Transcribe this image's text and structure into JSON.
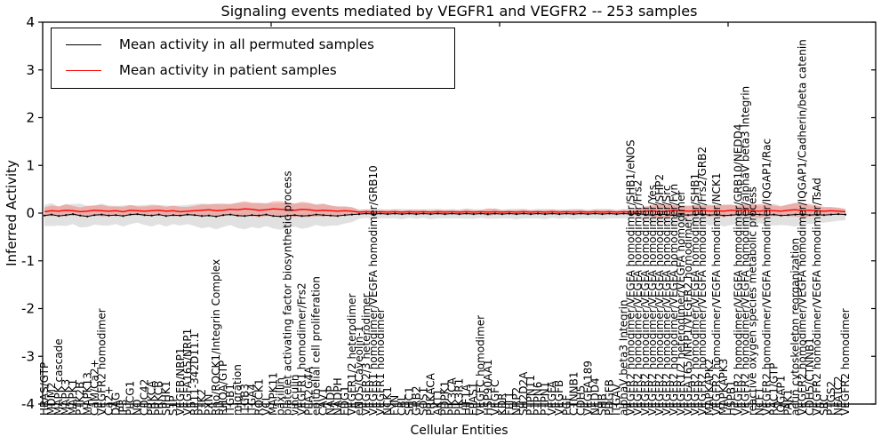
{
  "title": "Signaling events mediated by VEGFR1 and VEGFR2 -- 253 samples",
  "legend": {
    "items": [
      {
        "label": "Mean activity in all permuted samples",
        "color": "#000000"
      },
      {
        "label": "Mean activity in patient samples",
        "color": "#ff0000"
      }
    ]
  },
  "axes": {
    "ylabel": "Inferred Activity",
    "xlabel": "Cellular Entities",
    "ytick_labels": [
      "4",
      "3",
      "2",
      "1",
      "0",
      "-1",
      "-2",
      "-3",
      "-4"
    ],
    "ytick_values": [
      4,
      3,
      2,
      1,
      0,
      -1,
      -2,
      -3,
      -4
    ]
  },
  "colors": {
    "permuted_line": "#000000",
    "patient_line": "#ff0000",
    "permuted_band": "#c9c9c9",
    "patient_band": "#f4635a",
    "frame": "#000000"
  },
  "chart_data": {
    "type": "line",
    "title": "Signaling events mediated by VEGFR1 and VEGFR2 -- 253 samples",
    "xlabel": "Cellular Entities",
    "ylabel": "Inferred Activity",
    "ylim": [
      -4,
      4
    ],
    "grid": false,
    "legend_position": "upper left",
    "categories": [
      "HRAS/GTP",
      "MDM2",
      "MAPK cascade",
      "MAPK3",
      "MAPK1",
      "PTK2B",
      "MAPK13",
      "CaM/Ca2+",
      "VEGFR2 homodimer",
      "Ca2+",
      "DAG",
      "IP3",
      "PLCG1",
      "NO",
      "CDC42",
      "PRKCA",
      "PRKCB",
      "SPHK1",
      "S1P",
      "VEGFB/NRP1",
      "VEGFA165/NRP1",
      "RP11-342D11.1",
      "PTK2",
      "PXN",
      "Rho/ROCK1/Integrin Complex",
      "RHOA/GTP",
      "ITGB1",
      "migration",
      "ITGB3",
      "ITGA4",
      "ROCK1",
      "VCL",
      "MAPK11",
      "paxillin",
      "platelet activating factor biosynthetic process",
      "vinculin",
      "VEGFR1 homodimer/Frs2",
      "PLA2G4A",
      "epithelial cell proliferation",
      "CAV1",
      "NADP",
      "NADPH",
      "EDG1",
      "VEGFR1/2 heterodimer",
      "eNOS/Caveolin-1",
      "VEGFR2/3 heterodimer",
      "VEGFR1 homodimer/VEGFA homodimer/GRB10",
      "VEGFR1 homodimer",
      "NCK1",
      "FYN",
      "CBL",
      "SHC1",
      "GRB2",
      "SOS1",
      "PRKACA",
      "AKT1",
      "PDPK1",
      "PIK3CA",
      "PIK3R1",
      "HIF1A",
      "EPAS1",
      "VEGFC homodimer",
      "HSP90AA1",
      "VEGFC",
      "KDR",
      "FLT1",
      "NRP2",
      "SH2D2A",
      "PTPN11",
      "PTPN6",
      "PTPN1",
      "VEGFA",
      "VEGFB",
      "PGF",
      "CTNNB1",
      "CDH5",
      "VEGFA189",
      "NEDD4",
      "SHB",
      "PDGFB",
      "ITGAV",
      "alphaV beta3 Integrin",
      "VEGFR2 homodimer/VEGFA homodimer/SHB1/eNOS",
      "VEGFR2 homodimer/VEGFA homodimer/Frs2",
      "VEGFR2 homodimer/VEGFA homodimer",
      "VEGFR2 homodimer/VEGFA homodimer/Yes",
      "VEGFR2 homodimer/VEGFA homodimer/SHP2",
      "VEGFR2 homodimer/VEGFA homodimer/Src",
      "VEGFR2 homodimer/VEGFA homodimer/Fyn",
      "VEGFR1/2 heterodimer/VEGFA homodimer",
      "VEGFA165/NRP1/VEGFR2 homodimer",
      "VEGFR2 homodimer/VEGFA homodimer/SHB1",
      "VEGFR2 homodimer/VEGFA homodimer/Frs2/GRB2",
      "MAPKAPK2",
      "VEGFR2 homodimer/VEGFA homodimer/NCK1",
      "MAPKAPK3",
      "HSPB1",
      "VEGFR2 homodimer/VEGFA homodimer/GRB10/NEDD4",
      "VEGFR2 homodimer/VEGFA homodimer/alphaV beta3 Integrin",
      "reactive oxygen species metabolic process",
      "NCF1",
      "VEGFR2 homodimer/VEGFA homodimer/IQGAP1/Rac",
      "RAC1/GTP",
      "IQGAP1",
      "PAK1",
      "actin cytoskeleton reorganization",
      "VEGFR2 homodimer/VEGFA homodimer/IQGAP1/Cadherin/beta catenin",
      "CDH5/CTNNB1",
      "VEGFR2 homodimer/VEGFA homodimer/TsAd",
      "SRC",
      "PTGS2",
      "NFATC2",
      "VEGFR2 homodimer"
    ],
    "series": [
      {
        "name": "Mean activity in all permuted samples",
        "color": "#000000",
        "values": [
          -0.05,
          -0.03,
          -0.06,
          -0.04,
          -0.02,
          -0.05,
          -0.07,
          -0.04,
          -0.03,
          -0.05,
          -0.04,
          -0.06,
          -0.03,
          -0.02,
          -0.04,
          -0.05,
          -0.03,
          -0.06,
          -0.04,
          -0.05,
          -0.03,
          -0.04,
          -0.06,
          -0.05,
          -0.07,
          -0.04,
          -0.03,
          -0.05,
          -0.06,
          -0.04,
          -0.05,
          -0.03,
          -0.06,
          -0.07,
          -0.05,
          -0.04,
          -0.06,
          -0.05,
          -0.03,
          -0.04,
          -0.05,
          -0.06,
          -0.04,
          -0.03,
          -0.02,
          -0.01,
          -0.02,
          -0.01,
          -0.02,
          -0.01,
          -0.02,
          -0.01,
          -0.02,
          -0.01,
          -0.02,
          -0.01,
          -0.02,
          -0.01,
          -0.02,
          -0.01,
          -0.02,
          -0.01,
          -0.02,
          -0.01,
          -0.02,
          -0.01,
          -0.02,
          -0.01,
          -0.02,
          -0.01,
          -0.02,
          -0.01,
          -0.02,
          -0.01,
          -0.02,
          -0.01,
          -0.02,
          -0.01,
          -0.02,
          -0.01,
          -0.02,
          -0.01,
          -0.02,
          -0.01,
          -0.03,
          -0.04,
          -0.02,
          -0.03,
          -0.05,
          -0.03,
          -0.04,
          -0.03,
          -0.02,
          -0.04,
          -0.03,
          -0.05,
          -0.04,
          -0.03,
          -0.04,
          -0.02,
          -0.03,
          -0.04,
          -0.03,
          -0.05,
          -0.04,
          -0.03,
          -0.02,
          -0.04,
          -0.03,
          -0.04,
          -0.03,
          -0.02,
          -0.03
        ]
      },
      {
        "name": "Mean activity in patient samples",
        "color": "#ff0000",
        "values": [
          0.03,
          0.05,
          0.04,
          0.06,
          0.05,
          0.03,
          0.04,
          0.06,
          0.05,
          0.04,
          0.05,
          0.03,
          0.06,
          0.05,
          0.04,
          0.05,
          0.06,
          0.04,
          0.05,
          0.03,
          0.04,
          0.05,
          0.06,
          0.07,
          0.05,
          0.06,
          0.08,
          0.07,
          0.09,
          0.08,
          0.06,
          0.07,
          0.09,
          0.08,
          0.07,
          0.06,
          0.08,
          0.07,
          0.05,
          0.06,
          0.05,
          0.04,
          0.05,
          0.04,
          0.02,
          0.03,
          0.02,
          0.03,
          0.02,
          0.03,
          0.02,
          0.03,
          0.02,
          0.03,
          0.02,
          0.03,
          0.02,
          0.03,
          0.02,
          0.03,
          0.02,
          0.03,
          0.02,
          0.03,
          0.02,
          0.03,
          0.02,
          0.03,
          0.02,
          0.03,
          0.02,
          0.03,
          0.02,
          0.03,
          0.02,
          0.03,
          0.02,
          0.03,
          0.02,
          0.03,
          0.02,
          0.03,
          0.02,
          0.03,
          0.04,
          0.05,
          0.03,
          0.04,
          0.06,
          0.05,
          0.04,
          0.05,
          0.06,
          0.04,
          0.05,
          0.04,
          0.06,
          0.05,
          0.07,
          0.05,
          0.04,
          0.06,
          0.05,
          0.04,
          0.06,
          0.07,
          0.05,
          0.06,
          0.05,
          0.04,
          0.05,
          0.04,
          0.03
        ]
      }
    ],
    "bands": [
      {
        "name": "permuted std band",
        "color": "#c9c9c9",
        "half_width": [
          0.22,
          0.24,
          0.2,
          0.23,
          0.21,
          0.25,
          0.22,
          0.2,
          0.23,
          0.21,
          0.19,
          0.22,
          0.2,
          0.18,
          0.21,
          0.23,
          0.2,
          0.22,
          0.19,
          0.21,
          0.2,
          0.23,
          0.26,
          0.24,
          0.27,
          0.25,
          0.22,
          0.26,
          0.28,
          0.25,
          0.27,
          0.24,
          0.26,
          0.28,
          0.26,
          0.24,
          0.27,
          0.25,
          0.22,
          0.24,
          0.21,
          0.2,
          0.18,
          0.16,
          0.1,
          0.09,
          0.11,
          0.1,
          0.09,
          0.1,
          0.11,
          0.09,
          0.1,
          0.09,
          0.11,
          0.1,
          0.09,
          0.1,
          0.09,
          0.11,
          0.1,
          0.09,
          0.1,
          0.11,
          0.09,
          0.1,
          0.11,
          0.1,
          0.09,
          0.1,
          0.11,
          0.09,
          0.1,
          0.09,
          0.11,
          0.1,
          0.09,
          0.1,
          0.11,
          0.1,
          0.09,
          0.1,
          0.09,
          0.1,
          0.16,
          0.18,
          0.2,
          0.19,
          0.22,
          0.2,
          0.18,
          0.21,
          0.19,
          0.22,
          0.2,
          0.23,
          0.21,
          0.19,
          0.22,
          0.2,
          0.18,
          0.21,
          0.23,
          0.2,
          0.22,
          0.25,
          0.21,
          0.19,
          0.18,
          0.16,
          0.15,
          0.14,
          0.12
        ]
      },
      {
        "name": "patient std band",
        "color": "#f4635a",
        "half_width": [
          0.09,
          0.11,
          0.1,
          0.12,
          0.1,
          0.09,
          0.11,
          0.1,
          0.12,
          0.1,
          0.09,
          0.1,
          0.11,
          0.09,
          0.1,
          0.11,
          0.1,
          0.09,
          0.11,
          0.1,
          0.09,
          0.1,
          0.12,
          0.11,
          0.14,
          0.12,
          0.11,
          0.15,
          0.16,
          0.14,
          0.15,
          0.13,
          0.16,
          0.17,
          0.15,
          0.14,
          0.16,
          0.15,
          0.12,
          0.13,
          0.11,
          0.1,
          0.09,
          0.08,
          0.04,
          0.05,
          0.04,
          0.03,
          0.05,
          0.04,
          0.03,
          0.04,
          0.05,
          0.04,
          0.03,
          0.04,
          0.05,
          0.03,
          0.04,
          0.05,
          0.04,
          0.03,
          0.08,
          0.06,
          0.04,
          0.03,
          0.04,
          0.05,
          0.04,
          0.03,
          0.04,
          0.05,
          0.04,
          0.03,
          0.05,
          0.04,
          0.03,
          0.04,
          0.05,
          0.04,
          0.03,
          0.04,
          0.05,
          0.06,
          0.1,
          0.12,
          0.16,
          0.14,
          0.11,
          0.1,
          0.12,
          0.11,
          0.1,
          0.12,
          0.11,
          0.13,
          0.12,
          0.1,
          0.11,
          0.13,
          0.15,
          0.12,
          0.11,
          0.1,
          0.12,
          0.14,
          0.15,
          0.13,
          0.11,
          0.09,
          0.08,
          0.07,
          0.06
        ]
      }
    ]
  }
}
